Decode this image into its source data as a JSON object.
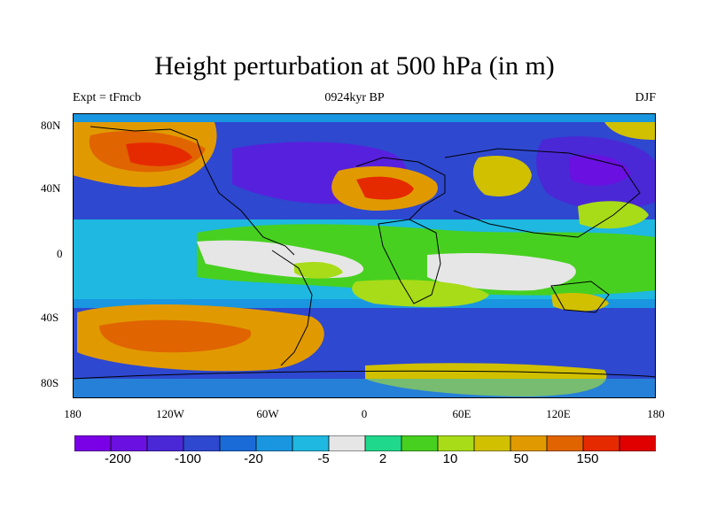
{
  "title": "Height perturbation at 500 hPa (in m)",
  "subtitle_left": "Expt = tFmcb",
  "subtitle_center": "0924kyr BP",
  "subtitle_right": "DJF",
  "lat_labels": [
    "80N",
    "40N",
    "0",
    "40S",
    "80S"
  ],
  "lon_labels": [
    "180",
    "120W",
    "60W",
    "0",
    "60E",
    "120E",
    "180"
  ],
  "colorbar": {
    "colors": [
      "#7a00e6",
      "#6a10e0",
      "#4a28d6",
      "#2e48d0",
      "#1a6ad8",
      "#1a96e0",
      "#1eb8e0",
      "#e6e6e6",
      "#20d88c",
      "#48d020",
      "#a8dc18",
      "#d0c000",
      "#e09a00",
      "#e06400",
      "#e62a00",
      "#e00000"
    ],
    "labels": [
      "-200",
      "-100",
      "-20",
      "-5",
      "2",
      "10",
      "50",
      "150"
    ]
  },
  "legend_palette": {
    "deep_negative": "#6a10e0",
    "negative": "#2e48d0",
    "slight_negative": "#1a96e0",
    "neutral": "#e6e6e6",
    "slight_positive": "#48d020",
    "positive": "#d0c000",
    "strong_positive": "#e64000"
  }
}
